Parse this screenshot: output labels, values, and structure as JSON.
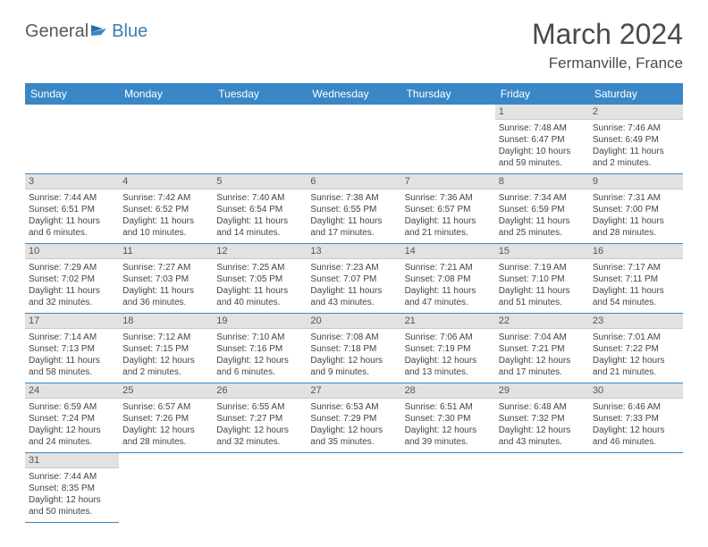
{
  "logo": {
    "general": "General",
    "blue": "Blue"
  },
  "title": "March 2024",
  "location": "Fermanville, France",
  "colors": {
    "header_bg": "#3a87c7",
    "header_text": "#ffffff",
    "daynum_bg": "#e2e2e2",
    "border": "#3a87c7",
    "text": "#444444"
  },
  "weekdays": [
    "Sunday",
    "Monday",
    "Tuesday",
    "Wednesday",
    "Thursday",
    "Friday",
    "Saturday"
  ],
  "startOffset": 5,
  "days": [
    {
      "n": 1,
      "sr": "7:48 AM",
      "ss": "6:47 PM",
      "dl": "10 hours and 59 minutes."
    },
    {
      "n": 2,
      "sr": "7:46 AM",
      "ss": "6:49 PM",
      "dl": "11 hours and 2 minutes."
    },
    {
      "n": 3,
      "sr": "7:44 AM",
      "ss": "6:51 PM",
      "dl": "11 hours and 6 minutes."
    },
    {
      "n": 4,
      "sr": "7:42 AM",
      "ss": "6:52 PM",
      "dl": "11 hours and 10 minutes."
    },
    {
      "n": 5,
      "sr": "7:40 AM",
      "ss": "6:54 PM",
      "dl": "11 hours and 14 minutes."
    },
    {
      "n": 6,
      "sr": "7:38 AM",
      "ss": "6:55 PM",
      "dl": "11 hours and 17 minutes."
    },
    {
      "n": 7,
      "sr": "7:36 AM",
      "ss": "6:57 PM",
      "dl": "11 hours and 21 minutes."
    },
    {
      "n": 8,
      "sr": "7:34 AM",
      "ss": "6:59 PM",
      "dl": "11 hours and 25 minutes."
    },
    {
      "n": 9,
      "sr": "7:31 AM",
      "ss": "7:00 PM",
      "dl": "11 hours and 28 minutes."
    },
    {
      "n": 10,
      "sr": "7:29 AM",
      "ss": "7:02 PM",
      "dl": "11 hours and 32 minutes."
    },
    {
      "n": 11,
      "sr": "7:27 AM",
      "ss": "7:03 PM",
      "dl": "11 hours and 36 minutes."
    },
    {
      "n": 12,
      "sr": "7:25 AM",
      "ss": "7:05 PM",
      "dl": "11 hours and 40 minutes."
    },
    {
      "n": 13,
      "sr": "7:23 AM",
      "ss": "7:07 PM",
      "dl": "11 hours and 43 minutes."
    },
    {
      "n": 14,
      "sr": "7:21 AM",
      "ss": "7:08 PM",
      "dl": "11 hours and 47 minutes."
    },
    {
      "n": 15,
      "sr": "7:19 AM",
      "ss": "7:10 PM",
      "dl": "11 hours and 51 minutes."
    },
    {
      "n": 16,
      "sr": "7:17 AM",
      "ss": "7:11 PM",
      "dl": "11 hours and 54 minutes."
    },
    {
      "n": 17,
      "sr": "7:14 AM",
      "ss": "7:13 PM",
      "dl": "11 hours and 58 minutes."
    },
    {
      "n": 18,
      "sr": "7:12 AM",
      "ss": "7:15 PM",
      "dl": "12 hours and 2 minutes."
    },
    {
      "n": 19,
      "sr": "7:10 AM",
      "ss": "7:16 PM",
      "dl": "12 hours and 6 minutes."
    },
    {
      "n": 20,
      "sr": "7:08 AM",
      "ss": "7:18 PM",
      "dl": "12 hours and 9 minutes."
    },
    {
      "n": 21,
      "sr": "7:06 AM",
      "ss": "7:19 PM",
      "dl": "12 hours and 13 minutes."
    },
    {
      "n": 22,
      "sr": "7:04 AM",
      "ss": "7:21 PM",
      "dl": "12 hours and 17 minutes."
    },
    {
      "n": 23,
      "sr": "7:01 AM",
      "ss": "7:22 PM",
      "dl": "12 hours and 21 minutes."
    },
    {
      "n": 24,
      "sr": "6:59 AM",
      "ss": "7:24 PM",
      "dl": "12 hours and 24 minutes."
    },
    {
      "n": 25,
      "sr": "6:57 AM",
      "ss": "7:26 PM",
      "dl": "12 hours and 28 minutes."
    },
    {
      "n": 26,
      "sr": "6:55 AM",
      "ss": "7:27 PM",
      "dl": "12 hours and 32 minutes."
    },
    {
      "n": 27,
      "sr": "6:53 AM",
      "ss": "7:29 PM",
      "dl": "12 hours and 35 minutes."
    },
    {
      "n": 28,
      "sr": "6:51 AM",
      "ss": "7:30 PM",
      "dl": "12 hours and 39 minutes."
    },
    {
      "n": 29,
      "sr": "6:48 AM",
      "ss": "7:32 PM",
      "dl": "12 hours and 43 minutes."
    },
    {
      "n": 30,
      "sr": "6:46 AM",
      "ss": "7:33 PM",
      "dl": "12 hours and 46 minutes."
    },
    {
      "n": 31,
      "sr": "7:44 AM",
      "ss": "8:35 PM",
      "dl": "12 hours and 50 minutes."
    }
  ],
  "labels": {
    "sunrise": "Sunrise:",
    "sunset": "Sunset:",
    "daylight": "Daylight:"
  }
}
